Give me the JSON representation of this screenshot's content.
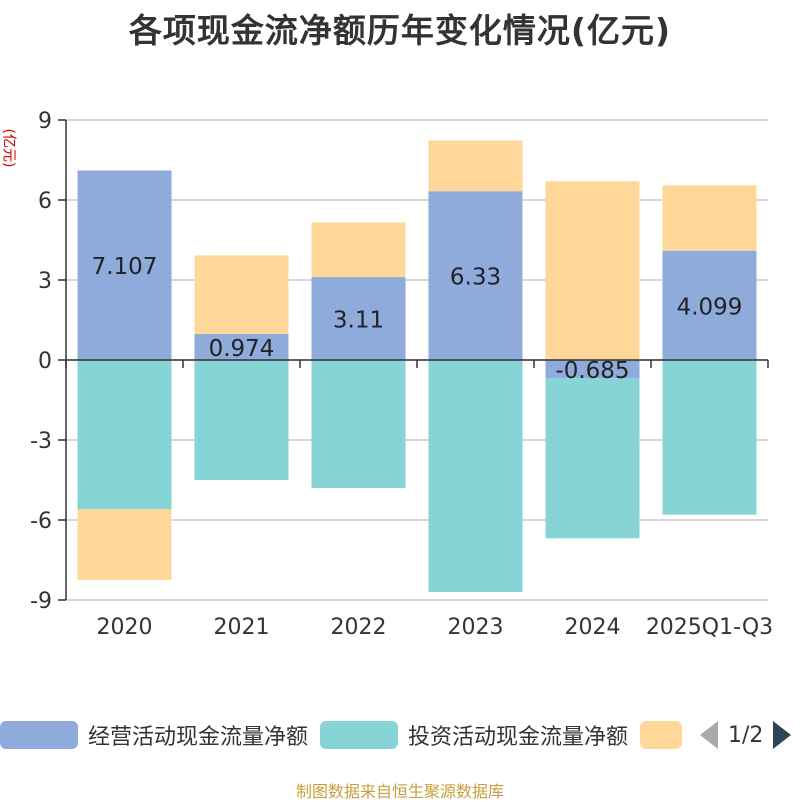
{
  "title": "各项现金流净额历年变化情况(亿元)",
  "y_unit_label": "(亿元)",
  "legend": {
    "items": [
      {
        "label": "经营活动现金流量净额",
        "color": "#8eabdb"
      },
      {
        "label": "投资活动现金流量净额",
        "color": "#86d4d6"
      },
      {
        "label": "",
        "color": "#ffd899"
      }
    ],
    "page_indicator": "1/2"
  },
  "source": "制图数据来自恒生聚源数据库",
  "chart_data": {
    "type": "bar",
    "stacked": true,
    "categories": [
      "2020",
      "2021",
      "2022",
      "2023",
      "2024",
      "2025Q1-Q3"
    ],
    "ylim": [
      -9,
      9
    ],
    "yticks": [
      9,
      6,
      3,
      0,
      -3,
      -6,
      -9
    ],
    "grid": true,
    "legend_position": "bottom",
    "series": [
      {
        "name": "经营活动现金流量净额",
        "color": "#8eabdb",
        "values": [
          7.107,
          0.974,
          3.11,
          6.33,
          -0.685,
          4.099
        ],
        "labels": [
          "7.107",
          "0.974",
          "3.11",
          "6.33",
          "-0.685",
          "4.099"
        ]
      },
      {
        "name": "投资活动现金流量净额",
        "color": "#86d4d6",
        "values": [
          -5.6,
          -4.5,
          -4.8,
          -8.7,
          -6.0,
          -5.8
        ]
      },
      {
        "color": "#ffd899",
        "values": [
          -2.65,
          2.95,
          2.05,
          1.9,
          6.7,
          2.45
        ]
      }
    ]
  }
}
